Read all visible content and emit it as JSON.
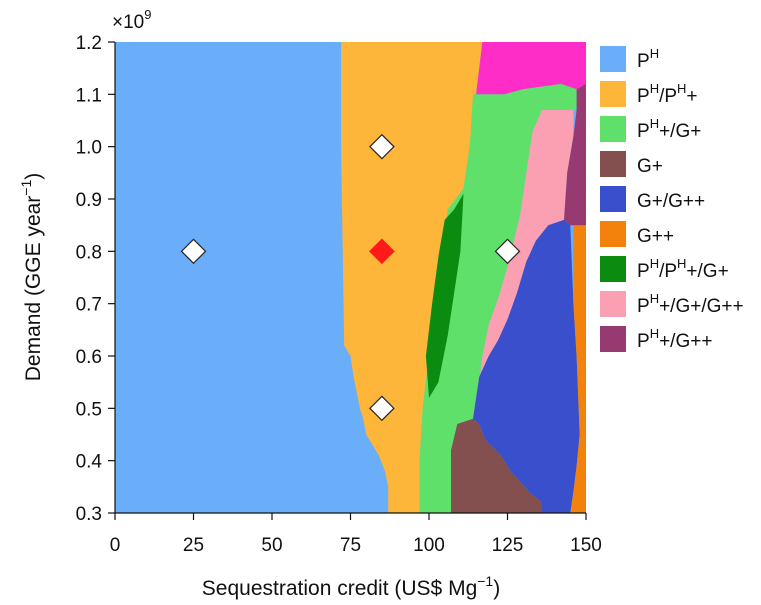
{
  "chart_data": {
    "type": "heatmap",
    "multiplier_label": "×10",
    "multiplier_exp": "9",
    "xlabel": {
      "pre": "Sequestration credit (US$ Mg",
      "sup": "−1",
      "post": ")"
    },
    "ylabel": {
      "pre": "Demand (GGE year",
      "sup": "−1",
      "post": ")"
    },
    "xlim": [
      0,
      150
    ],
    "ylim": [
      0.3,
      1.2
    ],
    "xticks": [
      0,
      25,
      50,
      75,
      100,
      125,
      150
    ],
    "yticks": [
      0.3,
      0.4,
      0.5,
      0.6,
      0.7,
      0.8,
      0.9,
      1.0,
      1.1,
      1.2
    ],
    "legend_position": "right",
    "legend": [
      {
        "key": "PH",
        "color": "#6aaefa",
        "parts": [
          [
            "P",
            ""
          ],
          [
            "H",
            "sup"
          ]
        ]
      },
      {
        "key": "PH/PH+",
        "color": "#fdb63a",
        "parts": [
          [
            "P",
            ""
          ],
          [
            "H",
            "sup"
          ],
          [
            "/P",
            ""
          ],
          [
            "H",
            "sup"
          ],
          [
            "+",
            ""
          ]
        ]
      },
      {
        "key": "PH+/G+",
        "color": "#5ee06b",
        "parts": [
          [
            "P",
            ""
          ],
          [
            "H",
            "sup"
          ],
          [
            "+/G+",
            ""
          ]
        ]
      },
      {
        "key": "G+",
        "color": "#83504f",
        "parts": [
          [
            "G+",
            ""
          ]
        ]
      },
      {
        "key": "G+/G++",
        "color": "#394fcc",
        "parts": [
          [
            "G+/G++",
            ""
          ]
        ]
      },
      {
        "key": "G++",
        "color": "#f3820c",
        "parts": [
          [
            "G++",
            ""
          ]
        ]
      },
      {
        "key": "PH/PH+/G+",
        "color": "#0b8c10",
        "parts": [
          [
            "P",
            ""
          ],
          [
            "H",
            "sup"
          ],
          [
            "/P",
            ""
          ],
          [
            "H",
            "sup"
          ],
          [
            "+/G+",
            ""
          ]
        ]
      },
      {
        "key": "PH+/G+/G++",
        "color": "#fba0b2",
        "parts": [
          [
            "P",
            ""
          ],
          [
            "H",
            "sup"
          ],
          [
            "+/G+/G++",
            ""
          ]
        ]
      },
      {
        "key": "PH+/G++",
        "color": "#983a72",
        "parts": [
          [
            "P",
            ""
          ],
          [
            "H",
            "sup"
          ],
          [
            "+/G++",
            ""
          ]
        ]
      }
    ],
    "regions": [
      {
        "key": "PH",
        "polygon": [
          [
            0,
            0.3
          ],
          [
            0,
            1.2
          ],
          [
            72,
            1.2
          ],
          [
            72,
            1.0
          ],
          [
            73,
            0.62
          ],
          [
            75,
            0.6
          ],
          [
            76,
            0.56
          ],
          [
            77,
            0.53
          ],
          [
            78,
            0.5
          ],
          [
            79,
            0.48
          ],
          [
            80,
            0.45
          ],
          [
            82,
            0.43
          ],
          [
            84,
            0.41
          ],
          [
            86,
            0.38
          ],
          [
            87,
            0.35
          ],
          [
            87,
            0.3
          ]
        ]
      },
      {
        "key": "PH/PH+",
        "polygon": [
          [
            72,
            1.2
          ],
          [
            117,
            1.2
          ],
          [
            115,
            1.1
          ],
          [
            113,
            1.0
          ],
          [
            111,
            0.92
          ],
          [
            106,
            0.88
          ],
          [
            104,
            0.8
          ],
          [
            102,
            0.7
          ],
          [
            100,
            0.6
          ],
          [
            98,
            0.5
          ],
          [
            97,
            0.4
          ],
          [
            97,
            0.3
          ],
          [
            87,
            0.3
          ],
          [
            87,
            0.35
          ],
          [
            86,
            0.38
          ],
          [
            84,
            0.41
          ],
          [
            82,
            0.43
          ],
          [
            80,
            0.45
          ],
          [
            79,
            0.48
          ],
          [
            78,
            0.5
          ],
          [
            77,
            0.53
          ],
          [
            76,
            0.56
          ],
          [
            75,
            0.6
          ],
          [
            73,
            0.62
          ],
          [
            72,
            1.0
          ]
        ]
      },
      {
        "key": "PH+/G+",
        "polygon": [
          [
            97,
            0.3
          ],
          [
            107,
            0.3
          ],
          [
            107,
            0.42
          ],
          [
            109,
            0.47
          ],
          [
            114,
            0.48
          ],
          [
            116,
            0.55
          ],
          [
            117,
            0.6
          ],
          [
            119,
            0.66
          ],
          [
            122,
            0.71
          ],
          [
            125,
            0.77
          ],
          [
            127,
            0.82
          ],
          [
            129,
            0.87
          ],
          [
            131,
            0.95
          ],
          [
            133,
            1.03
          ],
          [
            136,
            1.07
          ],
          [
            147,
            1.07
          ],
          [
            147,
            1.11
          ],
          [
            142,
            1.12
          ],
          [
            130,
            1.11
          ],
          [
            124,
            1.1
          ],
          [
            114,
            1.1
          ],
          [
            113,
            1.0
          ],
          [
            111,
            0.92
          ],
          [
            106,
            0.88
          ],
          [
            104,
            0.8
          ],
          [
            102,
            0.7
          ],
          [
            100,
            0.6
          ],
          [
            98,
            0.5
          ],
          [
            97,
            0.4
          ]
        ]
      },
      {
        "key": "PH/PH+/G+",
        "polygon": [
          [
            105,
            0.86
          ],
          [
            108,
            0.88
          ],
          [
            111,
            0.91
          ],
          [
            110,
            0.8
          ],
          [
            108,
            0.72
          ],
          [
            106,
            0.64
          ],
          [
            103,
            0.55
          ],
          [
            100,
            0.52
          ],
          [
            99,
            0.6
          ],
          [
            101,
            0.7
          ],
          [
            103,
            0.79
          ]
        ]
      },
      {
        "key": "G+",
        "polygon": [
          [
            107,
            0.3
          ],
          [
            136,
            0.3
          ],
          [
            136,
            0.32
          ],
          [
            132,
            0.34
          ],
          [
            129,
            0.36
          ],
          [
            126,
            0.38
          ],
          [
            123,
            0.41
          ],
          [
            118,
            0.44
          ],
          [
            116,
            0.47
          ],
          [
            114,
            0.48
          ],
          [
            109,
            0.47
          ],
          [
            107,
            0.42
          ]
        ]
      },
      {
        "key": "PH+/G+/G++",
        "polygon": [
          [
            114,
            0.48
          ],
          [
            116,
            0.55
          ],
          [
            117,
            0.6
          ],
          [
            119,
            0.66
          ],
          [
            122,
            0.71
          ],
          [
            125,
            0.77
          ],
          [
            127,
            0.82
          ],
          [
            129,
            0.87
          ],
          [
            131,
            0.95
          ],
          [
            133,
            1.03
          ],
          [
            136,
            1.07
          ],
          [
            146,
            1.07
          ],
          [
            146,
            1.02
          ],
          [
            144,
            0.95
          ],
          [
            143,
            0.86
          ],
          [
            138,
            0.85
          ],
          [
            134,
            0.82
          ],
          [
            131,
            0.78
          ],
          [
            128,
            0.72
          ],
          [
            125,
            0.67
          ],
          [
            122,
            0.63
          ],
          [
            119,
            0.6
          ],
          [
            116,
            0.56
          ]
        ]
      },
      {
        "key": "G+/G++",
        "polygon": [
          [
            116,
            0.56
          ],
          [
            119,
            0.6
          ],
          [
            122,
            0.63
          ],
          [
            125,
            0.67
          ],
          [
            128,
            0.72
          ],
          [
            131,
            0.78
          ],
          [
            134,
            0.82
          ],
          [
            138,
            0.85
          ],
          [
            143,
            0.86
          ],
          [
            145,
            0.85
          ],
          [
            146,
            0.7
          ],
          [
            147,
            0.6
          ],
          [
            148,
            0.45
          ],
          [
            147,
            0.39
          ],
          [
            146,
            0.34
          ],
          [
            145,
            0.3
          ],
          [
            136,
            0.3
          ],
          [
            136,
            0.32
          ],
          [
            132,
            0.34
          ],
          [
            129,
            0.36
          ],
          [
            126,
            0.38
          ],
          [
            123,
            0.41
          ],
          [
            118,
            0.44
          ],
          [
            116,
            0.47
          ],
          [
            114,
            0.48
          ]
        ]
      },
      {
        "key": "G++",
        "polygon": [
          [
            145,
            0.3
          ],
          [
            150,
            0.3
          ],
          [
            150,
            0.85
          ],
          [
            146,
            0.85
          ],
          [
            146,
            0.7
          ],
          [
            147,
            0.6
          ],
          [
            148,
            0.45
          ],
          [
            147,
            0.39
          ],
          [
            146,
            0.34
          ]
        ]
      },
      {
        "key": "PH+/G++",
        "polygon": [
          [
            146,
            0.85
          ],
          [
            150,
            0.85
          ],
          [
            150,
            1.12
          ],
          [
            147,
            1.11
          ],
          [
            147,
            1.07
          ],
          [
            146,
            1.02
          ],
          [
            144,
            0.95
          ],
          [
            143,
            0.86
          ],
          [
            145,
            0.85
          ]
        ]
      },
      {
        "key": "top-pink",
        "color": "#ff2dc8",
        "polygon": [
          [
            117,
            1.2
          ],
          [
            150,
            1.2
          ],
          [
            150,
            1.12
          ],
          [
            147,
            1.11
          ],
          [
            142,
            1.12
          ],
          [
            130,
            1.11
          ],
          [
            124,
            1.1
          ],
          [
            114,
            1.1
          ],
          [
            115,
            1.1
          ]
        ]
      }
    ],
    "markers": [
      {
        "x": 25,
        "y": 0.8,
        "fill": "#ffffff"
      },
      {
        "x": 85,
        "y": 1.0,
        "fill": "#ffffff"
      },
      {
        "x": 85,
        "y": 0.8,
        "fill": "#ff1a1a"
      },
      {
        "x": 85,
        "y": 0.5,
        "fill": "#ffffff"
      },
      {
        "x": 125,
        "y": 0.8,
        "fill": "#ffffff"
      }
    ]
  }
}
